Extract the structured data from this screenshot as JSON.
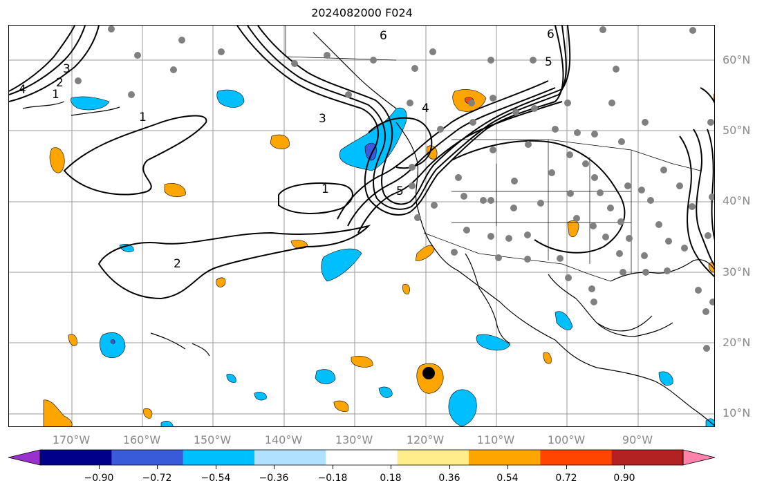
{
  "title": "2024082000 F024",
  "lat_labels": [
    "60°N",
    "50°N",
    "40°N",
    "30°N",
    "20°N",
    "10°N"
  ],
  "lon_labels": [
    "170°W",
    "160°W",
    "150°W",
    "140°W",
    "130°W",
    "120°W",
    "110°W",
    "100°W",
    "90°W"
  ],
  "colorbar": {
    "colors": [
      "#9932cc",
      "#00008b",
      "#3a5bd9",
      "#00bfff",
      "#b0e2ff",
      "#ffffff",
      "#ffec8b",
      "#ffa500",
      "#ff4500",
      "#b22222",
      "#ff82ab"
    ],
    "tick_labels": [
      "−0.90",
      "−0.72",
      "−0.54",
      "−0.36",
      "−0.18",
      "0.18",
      "0.36",
      "0.54",
      "0.72",
      "0.90"
    ]
  },
  "contour_labels": [
    "1",
    "1",
    "2",
    "3",
    "4",
    "5",
    "6",
    "1",
    "2",
    "3",
    "4",
    "5",
    "6"
  ],
  "colors": {
    "land_outline": "#000000",
    "grid": "#999999",
    "station": "#808080",
    "contour": "#000000",
    "marker": "#000000"
  }
}
